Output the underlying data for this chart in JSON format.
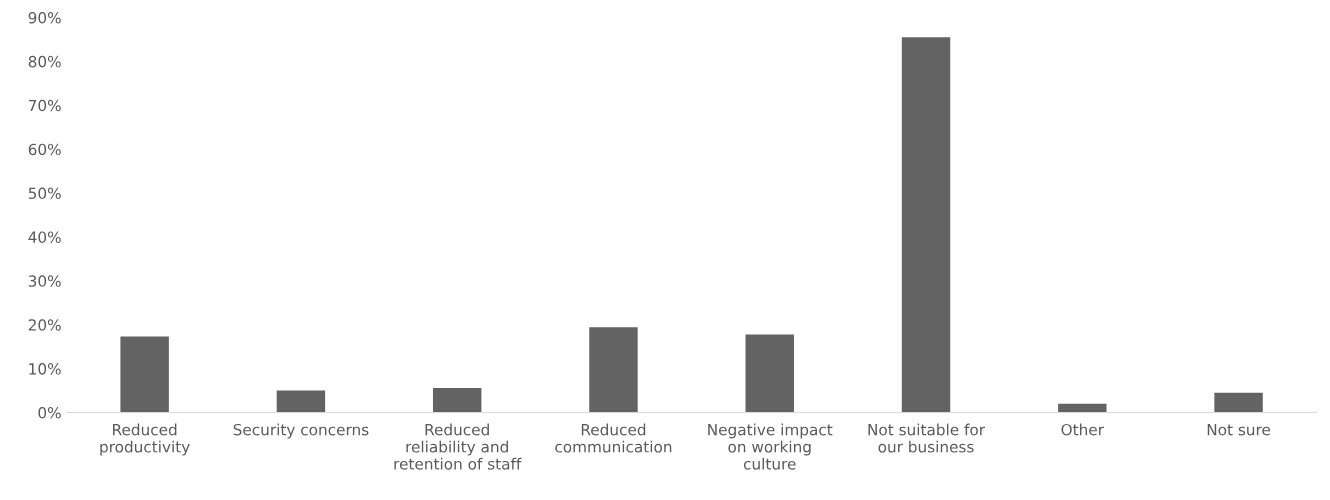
{
  "chart_data": {
    "type": "bar",
    "categories": [
      "Reduced\nproductivity",
      "Security concerns",
      "Reduced\nreliability and\nretention of staff",
      "Reduced\ncommunication",
      "Negative impact\non working\nculture",
      "Not suitable for\nour business",
      "Other",
      "Not sure"
    ],
    "values": [
      17.3,
      5.0,
      5.6,
      19.4,
      17.8,
      85.5,
      2.0,
      4.5
    ],
    "color": "#636363",
    "ylim": [
      0,
      90
    ],
    "yticks": [
      {
        "value": 0,
        "label": "0%"
      },
      {
        "value": 10,
        "label": "10%"
      },
      {
        "value": 20,
        "label": "20%"
      },
      {
        "value": 30,
        "label": "30%"
      },
      {
        "value": 40,
        "label": "40%"
      },
      {
        "value": 50,
        "label": "50%"
      },
      {
        "value": 60,
        "label": "60%"
      },
      {
        "value": 70,
        "label": "70%"
      },
      {
        "value": 80,
        "label": "80%"
      },
      {
        "value": 90,
        "label": "90%"
      }
    ],
    "grid": false
  }
}
